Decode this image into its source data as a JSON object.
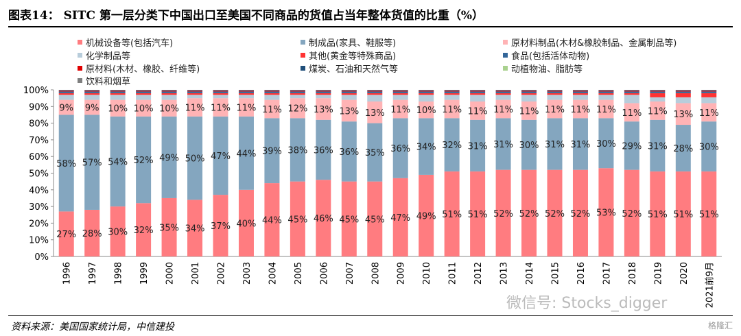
{
  "title": "图表14：  SITC 第一层分类下中国出口至美国不同商品的货值占当年整体货值的比重（%）",
  "source": "资料来源：美国国家统计局，中信建投",
  "watermark": "微信号: Stocks_digger",
  "logo": "格隆汇",
  "chart_data": {
    "type": "bar",
    "stacked": true,
    "legend_position": "top",
    "categories": [
      "1996",
      "1997",
      "1998",
      "1999",
      "2000",
      "2001",
      "2002",
      "2003",
      "2004",
      "2005",
      "2006",
      "2007",
      "2008",
      "2009",
      "2010",
      "2011",
      "2012",
      "2013",
      "2014",
      "2015",
      "2016",
      "2017",
      "2018",
      "2019",
      "2020",
      "2021前9月"
    ],
    "ylim": [
      0,
      100
    ],
    "yticks": [
      "0%",
      "10%",
      "20%",
      "30%",
      "40%",
      "50%",
      "60%",
      "70%",
      "80%",
      "90%",
      "100%"
    ],
    "series": [
      {
        "name": "机械设备等(包括汽车)",
        "color": "#ff7c80",
        "labeled": true,
        "values": [
          27,
          28,
          30,
          32,
          35,
          34,
          37,
          40,
          44,
          45,
          46,
          45,
          45,
          47,
          49,
          51,
          51,
          52,
          52,
          52,
          52,
          53,
          52,
          51,
          51,
          51
        ]
      },
      {
        "name": "制成品(家具、鞋服等)",
        "color": "#84a6bf",
        "labeled": true,
        "values": [
          58,
          57,
          54,
          52,
          49,
          50,
          47,
          44,
          39,
          38,
          36,
          36,
          35,
          36,
          34,
          32,
          31,
          31,
          30,
          31,
          31,
          30,
          29,
          31,
          28,
          30
        ]
      },
      {
        "name": "原材料制品(木材&橡胶制品、金属制品等)",
        "color": "#ffb3b5",
        "labeled": true,
        "values": [
          9,
          9,
          10,
          10,
          10,
          11,
          11,
          11,
          11,
          12,
          13,
          13,
          13,
          11,
          10,
          11,
          11,
          11,
          11,
          11,
          11,
          11,
          11,
          11,
          13,
          11
        ]
      },
      {
        "name": "化学制品等",
        "color": "#b8cddb",
        "values": [
          3,
          3,
          3,
          3,
          3,
          2,
          2,
          2,
          3,
          2,
          2,
          3,
          4,
          3,
          4,
          3,
          4,
          3,
          4,
          3,
          3,
          3,
          5,
          2.5,
          3.5,
          3.5
        ]
      },
      {
        "name": "其他(黄金等特殊商品)",
        "color": "#ff3333",
        "values": [
          1,
          1,
          1,
          1,
          1,
          1,
          1,
          1,
          1,
          1,
          1,
          1,
          1,
          1,
          1,
          1,
          1,
          1,
          1,
          1,
          1,
          1,
          1,
          2.5,
          2.5,
          2.5
        ]
      },
      {
        "name": "食品(包括活体动物)",
        "color": "#336699",
        "values": [
          1,
          1,
          1,
          1,
          1,
          1,
          1,
          1,
          1,
          1,
          1,
          1,
          1,
          1,
          1,
          1,
          1,
          1,
          1,
          1,
          1,
          1,
          1,
          1,
          1,
          1
        ]
      },
      {
        "name": "原材料(木材、橡胶、纤维等)",
        "color": "#e00000",
        "values": [
          0.5,
          0.5,
          0.5,
          0.5,
          0.5,
          0.5,
          0.5,
          0.5,
          0.5,
          0.5,
          0.5,
          0.5,
          0.5,
          0.5,
          0.5,
          0.5,
          0.5,
          0.5,
          0.5,
          0.5,
          0.5,
          0.5,
          0.5,
          0.5,
          0.5,
          0.5
        ]
      },
      {
        "name": "煤炭、石油和天然气等",
        "color": "#1f4e79",
        "values": [
          0.4,
          0.4,
          0.4,
          0.4,
          0.4,
          0.4,
          0.4,
          0.4,
          0.4,
          0.4,
          0.4,
          0.4,
          0.4,
          0.4,
          0.4,
          0.4,
          0.4,
          0.4,
          0.4,
          0.4,
          0.4,
          0.4,
          0.4,
          0.4,
          0.4,
          0.4
        ]
      },
      {
        "name": "动植物油、脂肪等",
        "color": "#a9d18e",
        "values": [
          0.05,
          0.05,
          0.05,
          0.05,
          0.05,
          0.05,
          0.05,
          0.05,
          0.05,
          0.05,
          0.05,
          0.05,
          0.05,
          0.05,
          0.05,
          0.05,
          0.05,
          0.05,
          0.05,
          0.05,
          0.05,
          0.05,
          0.05,
          0.05,
          0.05,
          0.05
        ]
      },
      {
        "name": "饮料和烟草",
        "color": "#7f7f7f",
        "values": [
          0.05,
          0.05,
          0.05,
          0.05,
          0.05,
          0.05,
          0.05,
          0.05,
          0.05,
          0.05,
          0.05,
          0.05,
          0.05,
          0.05,
          0.05,
          0.05,
          0.05,
          0.05,
          0.05,
          0.05,
          0.05,
          0.05,
          0.05,
          0.05,
          0.05,
          0.05
        ]
      }
    ]
  }
}
